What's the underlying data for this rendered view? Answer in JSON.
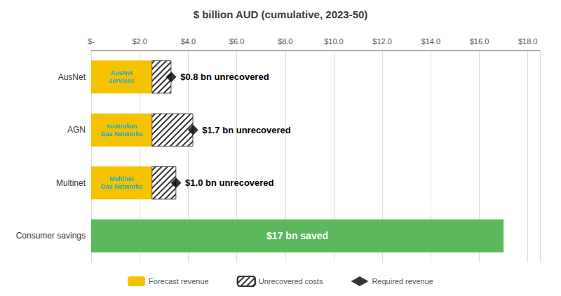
{
  "chart_data": {
    "type": "bar",
    "orientation": "horizontal",
    "stacked": true,
    "title": "$ billion AUD (cumulative, 2023-50)",
    "categories": [
      "AusNet",
      "AGN",
      "Multinet",
      "Consumer savings"
    ],
    "series": [
      {
        "name": "Forecast revenue",
        "color": "#F5C200",
        "values": [
          2.5,
          2.5,
          2.5,
          null
        ]
      },
      {
        "name": "Unrecovered costs",
        "color": "#FFFFFF",
        "line_style": "hatched",
        "values": [
          0.8,
          1.7,
          1.0,
          null
        ],
        "value_labels": [
          "$0.8 bn unrecovered",
          "$1.7 bn unrecovered",
          "$1.0 bn unrecovered",
          null
        ]
      },
      {
        "name": "Required revenue",
        "type": "scatter",
        "marker": "diamond",
        "color": "#000000",
        "values": [
          3.3,
          4.2,
          3.5,
          null
        ]
      },
      {
        "color": "#5CB85C",
        "values": [
          null,
          null,
          null,
          17.0
        ],
        "value_labels": [
          null,
          null,
          null,
          "$17 bn saved"
        ]
      }
    ],
    "annotations": [
      {
        "text": "AusNet\nservices",
        "category": "AusNet",
        "series": "Forecast revenue",
        "color": "#1AADCC"
      },
      {
        "text": "Australian\nGas Networks",
        "category": "AGN",
        "series": "Forecast revenue",
        "color": "#1AADCC"
      },
      {
        "text": "Multinet\nGas Networks",
        "category": "Multinet",
        "series": "Forecast revenue",
        "color": "#1AADCC"
      }
    ],
    "xlim": [
      0,
      18.5
    ],
    "xticks": [
      {
        "value": 0,
        "label": "$-"
      },
      {
        "value": 2.0,
        "label": "$2.0"
      },
      {
        "value": 4.0,
        "label": "$4.0"
      },
      {
        "value": 6.0,
        "label": "$6.0"
      },
      {
        "value": 8.0,
        "label": "$8.0"
      },
      {
        "value": 10.0,
        "label": "$10.0"
      },
      {
        "value": 12.0,
        "label": "$12.0"
      },
      {
        "value": 14.0,
        "label": "$14.0"
      },
      {
        "value": 16.0,
        "label": "$16.0"
      },
      {
        "value": 18.0,
        "label": "$18.0"
      }
    ],
    "grid": true,
    "legend": "bottom"
  }
}
